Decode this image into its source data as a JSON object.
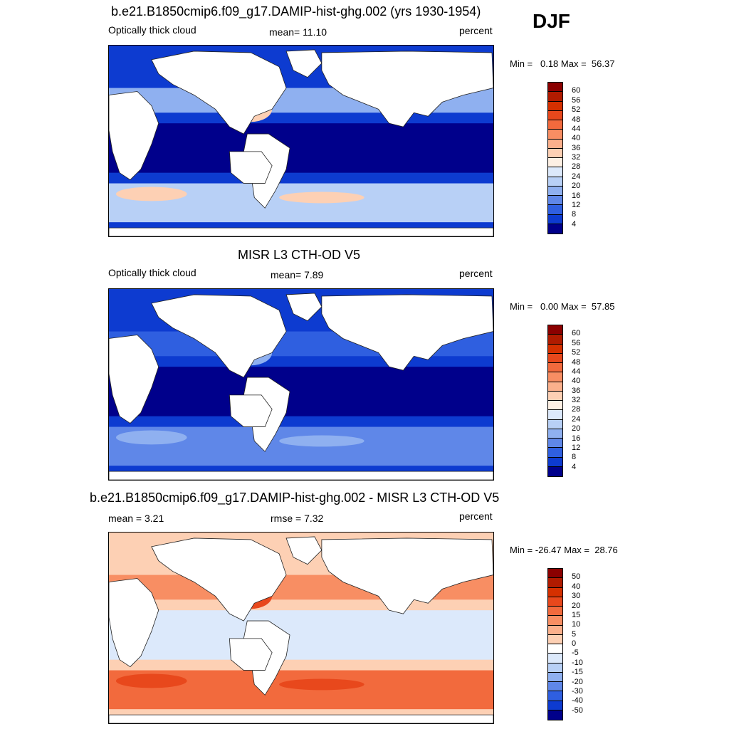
{
  "season": "DJF",
  "panels": [
    {
      "title": "b.e21.B1850cmip6.f09_g17.DAMIP-hist-ghg.002 (yrs 1930-1954)",
      "left_label": "Optically thick cloud",
      "center_label": "mean=  11.10",
      "right_label": "percent",
      "minmax": "Min =   0.18 Max =  56.37",
      "colorbar": {
        "ticks": [
          "60",
          "56",
          "52",
          "48",
          "44",
          "40",
          "36",
          "32",
          "28",
          "24",
          "20",
          "16",
          "12",
          "8",
          "4"
        ],
        "colors": [
          "#8b0000",
          "#b01b00",
          "#d53000",
          "#e8481c",
          "#f26a3d",
          "#f88e63",
          "#fbb08c",
          "#fdd0b4",
          "#fdf0e4",
          "#dce9fb",
          "#b8d0f6",
          "#8fb0f0",
          "#5f87e8",
          "#2f5fe0",
          "#0d3bd0",
          "#00008b"
        ]
      },
      "fields": {
        "land": "#ffffff",
        "ocean_base": "#0d3bd0",
        "tropics": "#00008b",
        "midlat_band": "#8fb0f0",
        "southern_ocean": "#b8d0f6",
        "hotspots": "#fdd0b4"
      }
    },
    {
      "title": "MISR L3 CTH-OD V5",
      "left_label": "Optically thick cloud",
      "center_label": "mean=   7.89",
      "right_label": "percent",
      "minmax": "Min =   0.00 Max =  57.85",
      "colorbar": {
        "ticks": [
          "60",
          "56",
          "52",
          "48",
          "44",
          "40",
          "36",
          "32",
          "28",
          "24",
          "20",
          "16",
          "12",
          "8",
          "4"
        ],
        "colors": [
          "#8b0000",
          "#b01b00",
          "#d53000",
          "#e8481c",
          "#f26a3d",
          "#f88e63",
          "#fbb08c",
          "#fdd0b4",
          "#fdf0e4",
          "#dce9fb",
          "#b8d0f6",
          "#8fb0f0",
          "#5f87e8",
          "#2f5fe0",
          "#0d3bd0",
          "#00008b"
        ]
      },
      "fields": {
        "land": "#ffffff",
        "ocean_base": "#0d3bd0",
        "tropics": "#00008b",
        "midlat_band": "#2f5fe0",
        "southern_ocean": "#5f87e8",
        "hotspots": "#8fb0f0"
      }
    },
    {
      "title": "b.e21.B1850cmip6.f09_g17.DAMIP-hist-ghg.002 - MISR L3 CTH-OD V5",
      "left_label": "mean =   3.21",
      "center_label": "rmse =   7.32",
      "right_label": "percent",
      "minmax": "Min = -26.47 Max =  28.76",
      "colorbar": {
        "ticks": [
          "50",
          "40",
          "30",
          "20",
          "15",
          "10",
          "5",
          "0",
          "-5",
          "-10",
          "-15",
          "-20",
          "-30",
          "-40",
          "-50"
        ],
        "colors": [
          "#8b0000",
          "#b01b00",
          "#d53000",
          "#e8481c",
          "#f26a3d",
          "#f88e63",
          "#fbb08c",
          "#fdd0b4",
          "#ffffff",
          "#dce9fb",
          "#b8d0f6",
          "#8fb0f0",
          "#5f87e8",
          "#2f5fe0",
          "#0d3bd0",
          "#00008b"
        ]
      },
      "fields": {
        "land": "#ffffff",
        "ocean_base": "#fdd0b4",
        "tropics": "#dce9fb",
        "midlat_band": "#f88e63",
        "southern_ocean": "#f26a3d",
        "hotspots": "#e8481c"
      }
    }
  ]
}
